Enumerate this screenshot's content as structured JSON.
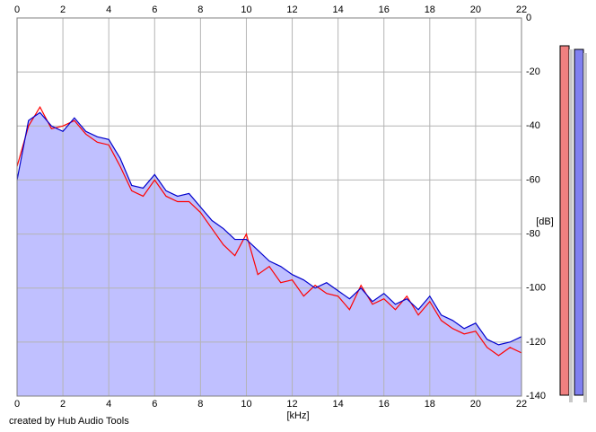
{
  "chart_data": {
    "type": "line",
    "xlabel": "[kHz]",
    "ylabel": "[dB]",
    "x": [
      0,
      0.5,
      1,
      1.5,
      2,
      2.5,
      3,
      3.5,
      4,
      4.5,
      5,
      5.5,
      6,
      6.5,
      7,
      7.5,
      8,
      8.5,
      9,
      9.5,
      10,
      10.5,
      11,
      11.5,
      12,
      12.5,
      13,
      13.5,
      14,
      14.5,
      15,
      15.5,
      16,
      16.5,
      17,
      17.5,
      18,
      18.5,
      19,
      19.5,
      20,
      20.5,
      21,
      21.5,
      22
    ],
    "series": [
      {
        "color": "#ff0000",
        "values": [
          -55,
          -40,
          -33,
          -41,
          -40,
          -38,
          -43,
          -46,
          -47,
          -55,
          -64,
          -66,
          -60,
          -66,
          -68,
          -68,
          -72,
          -78,
          -84,
          -88,
          -80,
          -95,
          -92,
          -98,
          -97,
          -103,
          -99,
          -102,
          -103,
          -108,
          -99,
          -106,
          -104,
          -108,
          -103,
          -110,
          -105,
          -112,
          -115,
          -117,
          -116,
          -122,
          -125,
          -122,
          -124
        ]
      },
      {
        "color": "#0000cc",
        "values": [
          -60,
          -38,
          -35,
          -40,
          -42,
          -37,
          -42,
          -44,
          -45,
          -52,
          -62,
          -63,
          -58,
          -64,
          -66,
          -65,
          -70,
          -75,
          -78,
          -82,
          -82,
          -86,
          -90,
          -92,
          -95,
          -97,
          -100,
          -98,
          -101,
          -104,
          -100,
          -105,
          -102,
          -106,
          -104,
          -108,
          -103,
          -110,
          -112,
          -115,
          -113,
          -119,
          -121,
          -120,
          -118
        ]
      }
    ],
    "fill": "#c0c0ff",
    "xlim": [
      0,
      22
    ],
    "xticks": [
      0,
      2,
      4,
      6,
      8,
      10,
      12,
      14,
      16,
      18,
      20,
      22
    ],
    "ylim": [
      -140,
      0
    ],
    "yticks": [
      0,
      -20,
      -40,
      -60,
      -80,
      -100,
      -120,
      -140
    ],
    "grid": true
  },
  "credit": "created by Hub Audio Tools"
}
